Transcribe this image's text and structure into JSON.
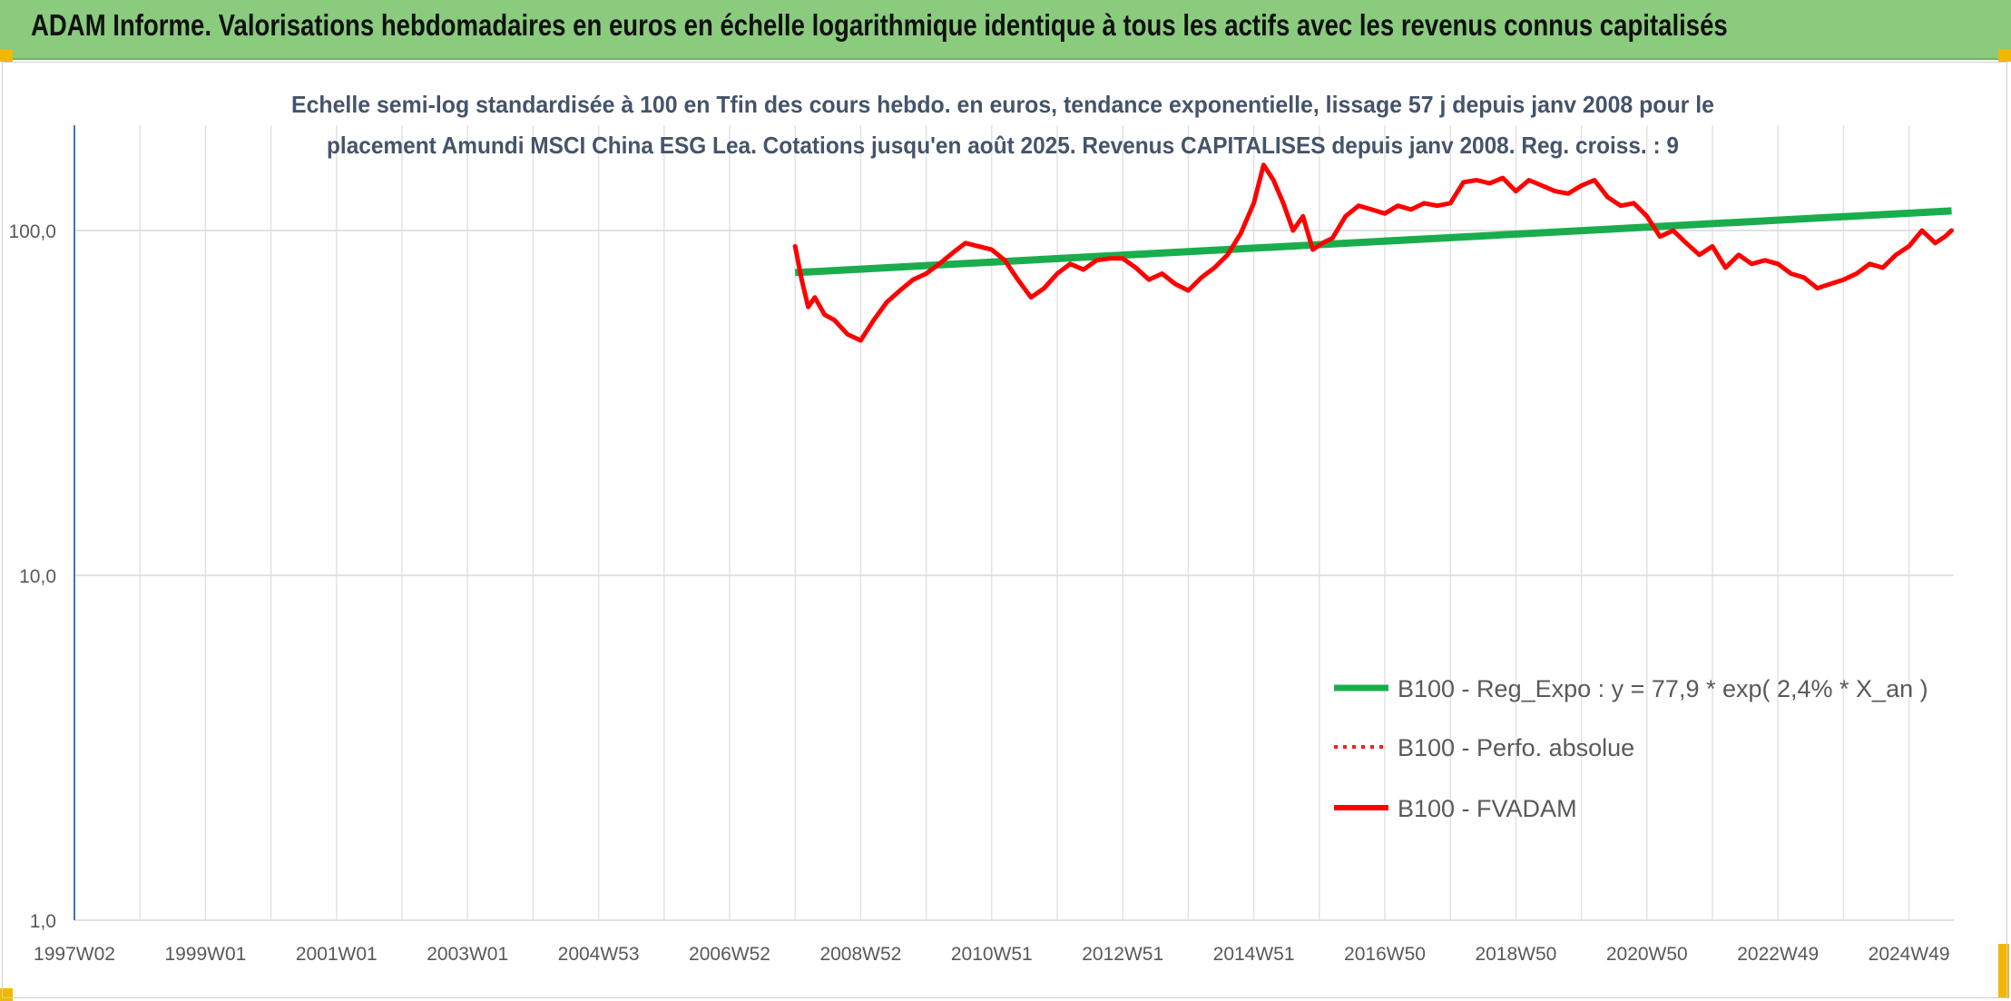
{
  "header": {
    "title": "ADAM Informe. Valorisations hebdomadaires en euros en échelle logarithmique identique à tous les actifs avec les revenus connus capitalisés"
  },
  "colors": {
    "banner": "#8acb7e",
    "accent": "#f2b705",
    "series_regression": "#1aad4d",
    "series_absolute": "#ff1a1a",
    "series_fvadam": "#ff0000"
  },
  "chart_data": {
    "type": "line",
    "title_lines": [
      "Echelle semi-log standardisée à 100 en Tfin des cours hebdo. en euros, tendance exponentielle, lissage 57 j depuis janv 2008 pour le",
      "placement Amundi MSCI China ESG Lea. Cotations jusqu'en août 2025. Revenus CAPITALISES depuis janv 2008. Reg. croiss. : 9"
    ],
    "y_scale": "log",
    "ylim": [
      1,
      190
    ],
    "y_ticks": [
      {
        "value": 1,
        "label": "1,0"
      },
      {
        "value": 10,
        "label": "10,0"
      },
      {
        "value": 100,
        "label": "100,0"
      }
    ],
    "xlim": [
      1997.0,
      2025.65
    ],
    "x_ticks": [
      {
        "value": 1997.0,
        "label": "1997W02"
      },
      {
        "value": 1999.0,
        "label": "1999W01"
      },
      {
        "value": 2001.0,
        "label": "2001W01"
      },
      {
        "value": 2003.0,
        "label": "2003W01"
      },
      {
        "value": 2005.0,
        "label": "2004W53"
      },
      {
        "value": 2007.0,
        "label": "2006W52"
      },
      {
        "value": 2009.0,
        "label": "2008W52"
      },
      {
        "value": 2011.0,
        "label": "2010W51"
      },
      {
        "value": 2013.0,
        "label": "2012W51"
      },
      {
        "value": 2015.0,
        "label": "2014W51"
      },
      {
        "value": 2017.0,
        "label": "2016W50"
      },
      {
        "value": 2019.0,
        "label": "2018W50"
      },
      {
        "value": 2021.0,
        "label": "2020W50"
      },
      {
        "value": 2023.0,
        "label": "2022W49"
      },
      {
        "value": 2025.0,
        "label": "2024W49"
      }
    ],
    "grid": "vertical-and-horizontal",
    "legend_position": "bottom-right",
    "series": [
      {
        "name": "B100 - Reg_Expo : y = 77,9 * exp( 2,4% *  X_an )",
        "style": "solid-thick",
        "color": "#1aad4d",
        "x": [
          2008.0,
          2025.65
        ],
        "y": [
          75.5,
          114
        ]
      },
      {
        "name": "B100 - Perfo. absolue",
        "style": "dotted",
        "color": "#ff1a1a",
        "x": [],
        "y": []
      },
      {
        "name": "B100 - FVADAM",
        "style": "solid",
        "color": "#ff0000",
        "x": [
          2008.0,
          2008.1,
          2008.2,
          2008.3,
          2008.45,
          2008.6,
          2008.8,
          2009.0,
          2009.2,
          2009.4,
          2009.6,
          2009.8,
          2010.0,
          2010.2,
          2010.4,
          2010.6,
          2010.8,
          2011.0,
          2011.2,
          2011.4,
          2011.6,
          2011.8,
          2012.0,
          2012.2,
          2012.4,
          2012.6,
          2012.8,
          2013.0,
          2013.2,
          2013.4,
          2013.6,
          2013.8,
          2014.0,
          2014.2,
          2014.4,
          2014.6,
          2014.8,
          2015.0,
          2015.15,
          2015.3,
          2015.45,
          2015.6,
          2015.75,
          2015.9,
          2016.05,
          2016.2,
          2016.4,
          2016.6,
          2016.8,
          2017.0,
          2017.2,
          2017.4,
          2017.6,
          2017.8,
          2018.0,
          2018.2,
          2018.4,
          2018.6,
          2018.8,
          2019.0,
          2019.2,
          2019.4,
          2019.6,
          2019.8,
          2020.0,
          2020.2,
          2020.4,
          2020.6,
          2020.8,
          2021.0,
          2021.2,
          2021.4,
          2021.6,
          2021.8,
          2022.0,
          2022.2,
          2022.4,
          2022.6,
          2022.8,
          2023.0,
          2023.2,
          2023.4,
          2023.6,
          2023.8,
          2024.0,
          2024.2,
          2024.4,
          2024.6,
          2024.8,
          2025.0,
          2025.2,
          2025.4,
          2025.55,
          2025.65
        ],
        "y": [
          90,
          72,
          60,
          64,
          57,
          55,
          50,
          48,
          55,
          62,
          67,
          72,
          75,
          80,
          86,
          92,
          90,
          88,
          82,
          72,
          64,
          68,
          75,
          80,
          77,
          82,
          83,
          83,
          78,
          72,
          75,
          70,
          67,
          73,
          78,
          85,
          98,
          120,
          155,
          140,
          120,
          100,
          110,
          88,
          92,
          95,
          110,
          118,
          115,
          112,
          118,
          115,
          120,
          118,
          120,
          138,
          140,
          137,
          142,
          130,
          140,
          135,
          130,
          128,
          135,
          140,
          125,
          118,
          120,
          110,
          96,
          100,
          92,
          85,
          90,
          78,
          85,
          80,
          82,
          80,
          75,
          73,
          68,
          70,
          72,
          75,
          80,
          78,
          85,
          90,
          100,
          92,
          96,
          100
        ]
      }
    ]
  }
}
